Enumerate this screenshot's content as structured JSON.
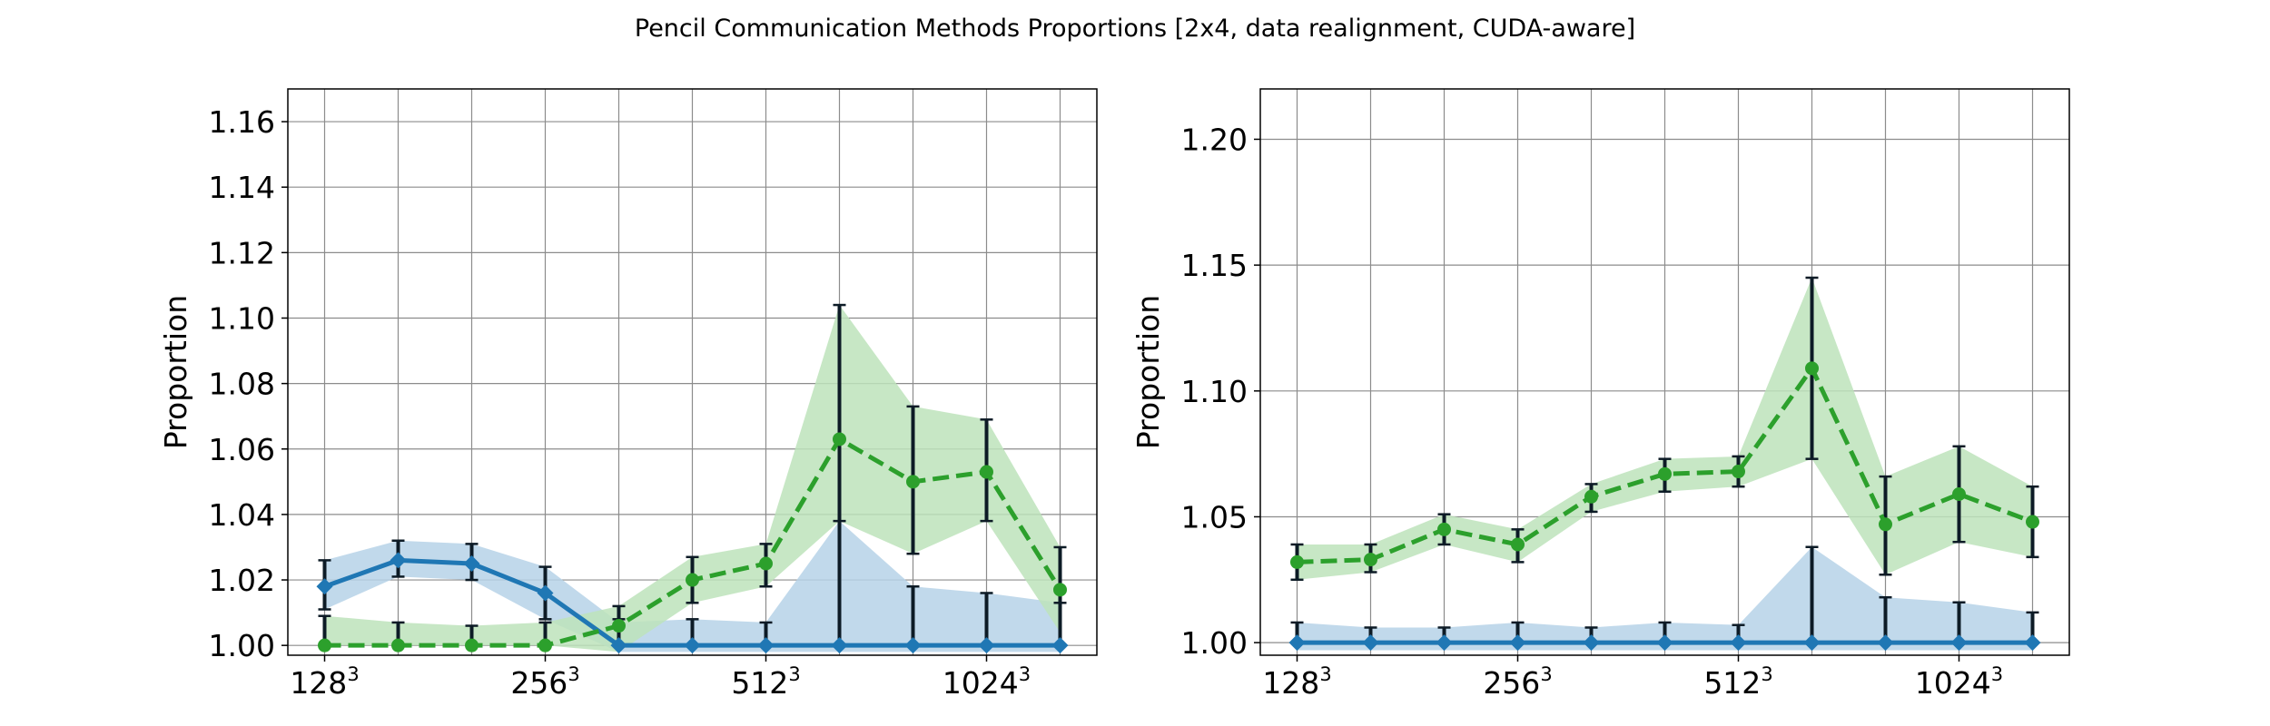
{
  "figure": {
    "title": "Pencil Communication Methods Proportions [2x4, data realignment, CUDA-aware]"
  },
  "colors": {
    "blue": "#1f77b4",
    "green": "#2ca02c",
    "blue_band": "#b6d2e8",
    "green_band": "#bde3bb",
    "errorbar": "#0d1b26",
    "grid": "#8c8c8c"
  },
  "chart_data": [
    {
      "type": "line",
      "title": "",
      "xlabel": "",
      "ylabel": "Proportion",
      "x": [
        0,
        1,
        2,
        3,
        4,
        5,
        6,
        7,
        8,
        9,
        10
      ],
      "xticks": [
        {
          "pos": 0,
          "base": "128",
          "sup": "3"
        },
        {
          "pos": 3,
          "base": "256",
          "sup": "3"
        },
        {
          "pos": 6,
          "base": "512",
          "sup": "3"
        },
        {
          "pos": 9,
          "base": "1024",
          "sup": "3"
        }
      ],
      "xlim": [
        -0.5,
        10.5
      ],
      "ylim": [
        0.997,
        1.17
      ],
      "yticks": [
        1.0,
        1.02,
        1.04,
        1.06,
        1.08,
        1.1,
        1.12,
        1.14,
        1.16
      ],
      "ytick_labels": [
        "1.00",
        "1.02",
        "1.04",
        "1.06",
        "1.08",
        "1.10",
        "1.12",
        "1.14",
        "1.16"
      ],
      "grid": true,
      "series": [
        {
          "color": "blue",
          "marker": "diamond",
          "dash": false,
          "values": [
            1.018,
            1.026,
            1.025,
            1.016,
            1.0,
            1.0,
            1.0,
            1.0,
            1.0,
            1.0,
            1.0
          ],
          "err_low": [
            1.011,
            1.021,
            1.02,
            1.008,
            1.0,
            1.0,
            1.0,
            1.0,
            1.0,
            1.0,
            1.0
          ],
          "err_high": [
            1.026,
            1.032,
            1.031,
            1.024,
            1.008,
            1.008,
            1.007,
            1.038,
            1.018,
            1.016,
            1.013
          ],
          "band_low": [
            1.011,
            1.021,
            1.02,
            1.008,
            0.998,
            0.998,
            0.998,
            0.998,
            0.998,
            0.998,
            0.998
          ],
          "band_high": [
            1.026,
            1.032,
            1.031,
            1.024,
            1.007,
            1.008,
            1.007,
            1.038,
            1.018,
            1.016,
            1.013
          ]
        },
        {
          "color": "green",
          "marker": "circle",
          "dash": true,
          "values": [
            1.0,
            1.0,
            1.0,
            1.0,
            1.006,
            1.02,
            1.025,
            1.063,
            1.05,
            1.053,
            1.017
          ],
          "err_low": [
            1.0,
            1.0,
            1.0,
            1.0,
            1.0,
            1.013,
            1.018,
            1.0,
            1.028,
            1.038,
            1.0
          ],
          "err_high": [
            1.009,
            1.007,
            1.006,
            1.007,
            1.012,
            1.027,
            1.031,
            1.104,
            1.073,
            1.069,
            1.03
          ],
          "band_low": [
            1.0,
            1.0,
            1.0,
            1.0,
            0.998,
            1.013,
            1.018,
            1.038,
            1.028,
            1.038,
            1.004
          ],
          "band_high": [
            1.009,
            1.007,
            1.006,
            1.007,
            1.012,
            1.027,
            1.031,
            1.104,
            1.073,
            1.069,
            1.03
          ]
        }
      ]
    },
    {
      "type": "line",
      "title": "",
      "xlabel": "",
      "ylabel": "Proportion",
      "x": [
        0,
        1,
        2,
        3,
        4,
        5,
        6,
        7,
        8,
        9,
        10
      ],
      "xticks": [
        {
          "pos": 0,
          "base": "128",
          "sup": "3"
        },
        {
          "pos": 3,
          "base": "256",
          "sup": "3"
        },
        {
          "pos": 6,
          "base": "512",
          "sup": "3"
        },
        {
          "pos": 9,
          "base": "1024",
          "sup": "3"
        }
      ],
      "xlim": [
        -0.5,
        10.5
      ],
      "ylim": [
        0.995,
        1.22
      ],
      "yticks": [
        1.0,
        1.05,
        1.1,
        1.15,
        1.2
      ],
      "ytick_labels": [
        "1.00",
        "1.05",
        "1.10",
        "1.15",
        "1.20"
      ],
      "grid": true,
      "series": [
        {
          "color": "blue",
          "marker": "diamond",
          "dash": false,
          "values": [
            1.0,
            1.0,
            1.0,
            1.0,
            1.0,
            1.0,
            1.0,
            1.0,
            1.0,
            1.0,
            1.0
          ],
          "err_low": [
            1.0,
            1.0,
            1.0,
            1.0,
            1.0,
            1.0,
            1.0,
            1.0,
            1.0,
            1.0,
            1.0
          ],
          "err_high": [
            1.008,
            1.006,
            1.006,
            1.008,
            1.006,
            1.008,
            1.007,
            1.038,
            1.018,
            1.016,
            1.012
          ],
          "band_low": [
            0.997,
            0.997,
            0.997,
            0.997,
            0.997,
            0.997,
            0.997,
            0.997,
            0.997,
            0.997,
            0.997
          ],
          "band_high": [
            1.008,
            1.006,
            1.006,
            1.008,
            1.006,
            1.008,
            1.007,
            1.038,
            1.018,
            1.016,
            1.012
          ]
        },
        {
          "color": "green",
          "marker": "circle",
          "dash": true,
          "values": [
            1.032,
            1.033,
            1.045,
            1.039,
            1.058,
            1.067,
            1.068,
            1.109,
            1.047,
            1.059,
            1.048
          ],
          "err_low": [
            1.025,
            1.028,
            1.039,
            1.032,
            1.052,
            1.06,
            1.062,
            1.073,
            1.027,
            1.04,
            1.034
          ],
          "err_high": [
            1.039,
            1.039,
            1.051,
            1.045,
            1.063,
            1.073,
            1.074,
            1.145,
            1.066,
            1.078,
            1.062
          ],
          "band_low": [
            1.025,
            1.028,
            1.039,
            1.032,
            1.052,
            1.06,
            1.062,
            1.073,
            1.027,
            1.04,
            1.034
          ],
          "band_high": [
            1.039,
            1.039,
            1.051,
            1.045,
            1.063,
            1.073,
            1.074,
            1.145,
            1.066,
            1.078,
            1.062
          ]
        }
      ]
    }
  ]
}
